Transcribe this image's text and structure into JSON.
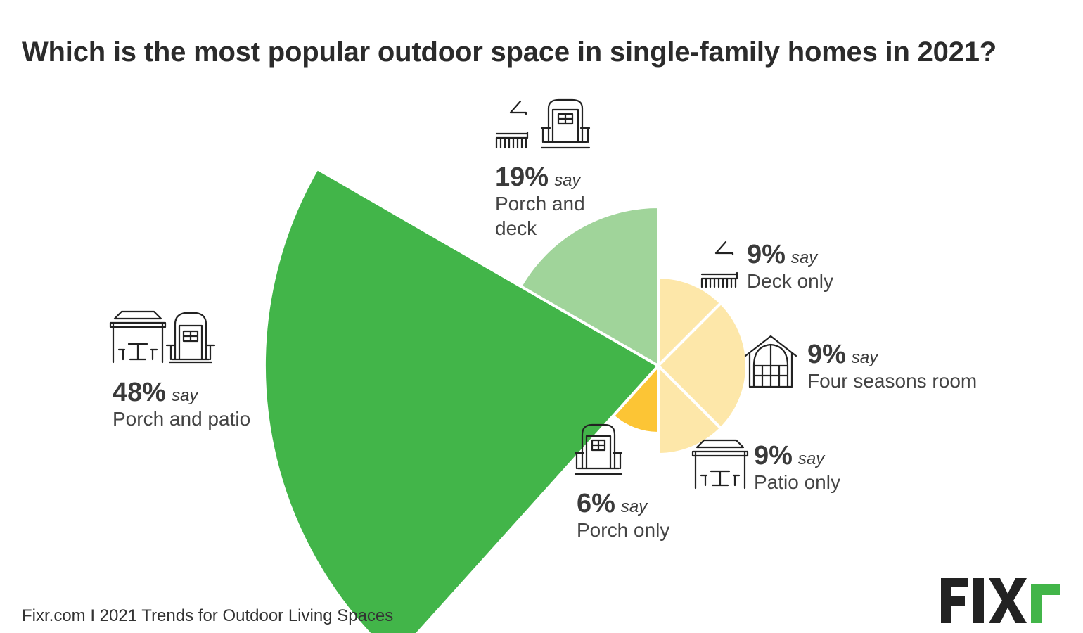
{
  "title": "Which is the most popular outdoor space in single-family homes in 2021?",
  "source": "Fixr.com I 2021 Trends for Outdoor Living Spaces",
  "logo_text": "FIXR",
  "say_word": "say",
  "chart_data": {
    "type": "pie",
    "variant": "polar-area (radius varies by share)",
    "title": "Which is the most popular outdoor space in single-family homes in 2021?",
    "categories": [
      "Porch and patio",
      "Porch and deck",
      "Deck only",
      "Four seasons room",
      "Patio only",
      "Porch only"
    ],
    "values": [
      48,
      19,
      9,
      9,
      9,
      6
    ],
    "unit": "%",
    "colors": [
      "#42b549",
      "#a0d49a",
      "#fde7a9",
      "#fde7a9",
      "#fde7a9",
      "#fcc535"
    ],
    "icons": [
      "gazebo-and-porch-icon",
      "deck-and-porch-icon",
      "deck-icon",
      "four-seasons-room-icon",
      "gazebo-icon",
      "porch-icon"
    ],
    "legend": "none"
  },
  "labels": [
    {
      "pct": "48%",
      "name": "Porch and patio"
    },
    {
      "pct": "19%",
      "name": "Porch and\ndeck"
    },
    {
      "pct": "9%",
      "name": "Deck only"
    },
    {
      "pct": "9%",
      "name": "Four seasons room"
    },
    {
      "pct": "9%",
      "name": "Patio only"
    },
    {
      "pct": "6%",
      "name": "Porch only"
    }
  ]
}
